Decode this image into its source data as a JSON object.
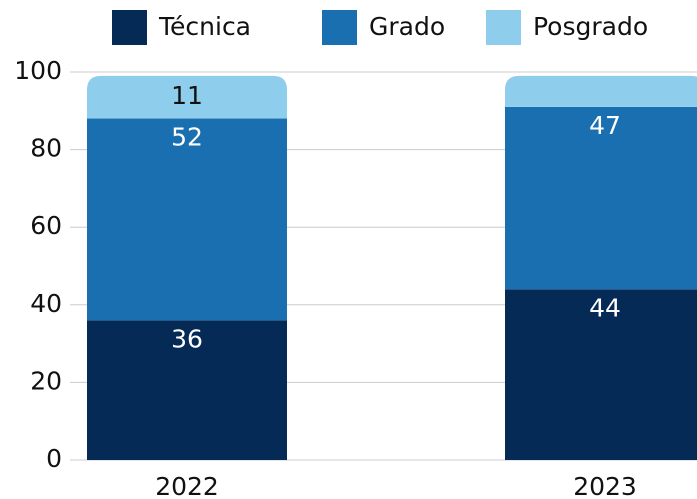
{
  "chart_data": {
    "type": "stacked_bar",
    "categories": [
      "2022",
      "2023"
    ],
    "series": [
      {
        "name": "Técnica",
        "color": "#062a56",
        "values": [
          36,
          44
        ],
        "value_labels": [
          "36",
          "44"
        ]
      },
      {
        "name": "Grado",
        "color": "#1a6fb0",
        "values": [
          52,
          47
        ],
        "value_labels": [
          "52",
          "47"
        ]
      },
      {
        "name": "Posgrado",
        "color": "#8fcdec",
        "values": [
          11,
          8
        ],
        "value_labels": [
          "11",
          null
        ]
      }
    ],
    "ylim": [
      0,
      100
    ],
    "yticks": [
      0,
      20,
      40,
      60,
      80,
      100
    ],
    "grid": true,
    "legend": "top"
  }
}
